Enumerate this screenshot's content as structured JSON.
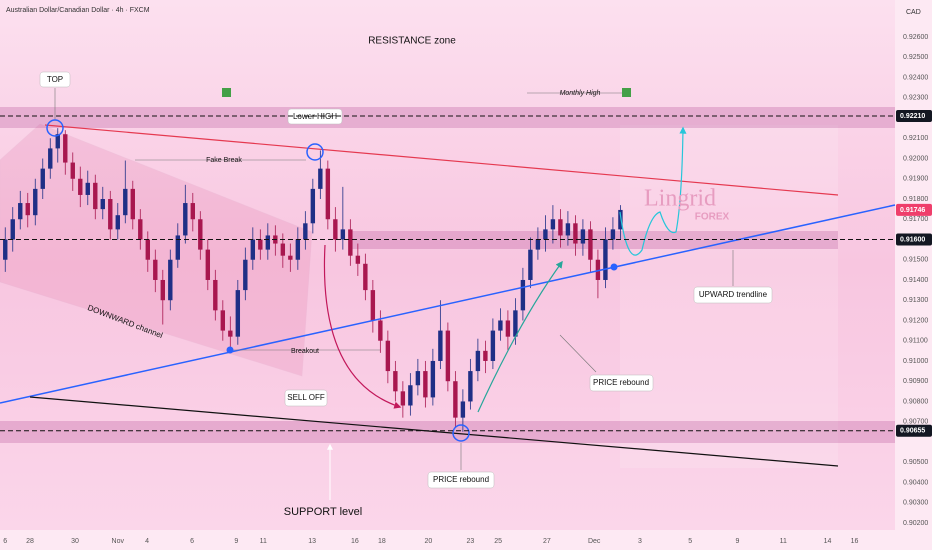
{
  "chart_data": {
    "type": "candlestick",
    "title": "Australian Dollar/Canadian Dollar · 4h · FXCM",
    "currency": "CAD",
    "annotations": [
      "RESISTANCE zone",
      "TOP",
      "Lower HIGH",
      "Fake Break",
      "Monthly High",
      "DOWNWARD channel",
      "Breakout",
      "SELL OFF",
      "PRICE rebound",
      "PRICE rebound",
      "UPWARD trendline",
      "SUPPORT level",
      "Lingrid",
      "FOREX"
    ],
    "up_color": "#1f2f86",
    "down_color": "#a8174f",
    "x": [
      1,
      2,
      3,
      4,
      5,
      6,
      7,
      8,
      9,
      10,
      11,
      12,
      13,
      14,
      15,
      16,
      17,
      18,
      19,
      20,
      21,
      22,
      23,
      24,
      25,
      26,
      27,
      28,
      29,
      30,
      31,
      32,
      33,
      34,
      35,
      36,
      37,
      38,
      39,
      40,
      41,
      42,
      43,
      44,
      45,
      46,
      47,
      48,
      49,
      50,
      51,
      52,
      53,
      54,
      55,
      56,
      57,
      58,
      59,
      60,
      61,
      62,
      63,
      64,
      65,
      66,
      67,
      68,
      69,
      70,
      71,
      72,
      73,
      74,
      75,
      76,
      77,
      78,
      79,
      80,
      81,
      82,
      83
    ],
    "open": [
      0.915,
      0.916,
      0.917,
      0.9178,
      0.9172,
      0.9185,
      0.9195,
      0.9205,
      0.9212,
      0.9198,
      0.919,
      0.9182,
      0.9188,
      0.9175,
      0.918,
      0.9165,
      0.9172,
      0.9185,
      0.917,
      0.916,
      0.915,
      0.914,
      0.913,
      0.915,
      0.9162,
      0.9178,
      0.917,
      0.9155,
      0.914,
      0.9125,
      0.9115,
      0.9112,
      0.9135,
      0.915,
      0.916,
      0.9155,
      0.9162,
      0.9158,
      0.9152,
      0.915,
      0.916,
      0.9168,
      0.9185,
      0.9195,
      0.917,
      0.916,
      0.9165,
      0.9152,
      0.9148,
      0.9135,
      0.912,
      0.911,
      0.9095,
      0.9085,
      0.9078,
      0.9088,
      0.9095,
      0.9082,
      0.91,
      0.9115,
      0.909,
      0.9072,
      0.908,
      0.9095,
      0.9105,
      0.91,
      0.9115,
      0.912,
      0.9112,
      0.9125,
      0.914,
      0.9155,
      0.916,
      0.9165,
      0.917,
      0.9162,
      0.9168,
      0.9158,
      0.9165,
      0.915,
      0.914,
      0.916,
      0.9165
    ],
    "high": [
      0.9166,
      0.9176,
      0.9184,
      0.9183,
      0.919,
      0.92,
      0.921,
      0.9215,
      0.9214,
      0.9203,
      0.9196,
      0.9194,
      0.9192,
      0.9186,
      0.9184,
      0.9178,
      0.9199,
      0.9189,
      0.9175,
      0.9164,
      0.9155,
      0.9145,
      0.9155,
      0.9168,
      0.9187,
      0.9183,
      0.9174,
      0.916,
      0.9145,
      0.913,
      0.9122,
      0.914,
      0.9156,
      0.9166,
      0.9165,
      0.9168,
      0.9167,
      0.9163,
      0.9158,
      0.9166,
      0.9174,
      0.919,
      0.9204,
      0.9199,
      0.9176,
      0.9186,
      0.917,
      0.9158,
      0.9153,
      0.914,
      0.9125,
      0.9115,
      0.91,
      0.909,
      0.9094,
      0.9101,
      0.91,
      0.9106,
      0.913,
      0.9119,
      0.9095,
      0.9086,
      0.9101,
      0.9111,
      0.911,
      0.9121,
      0.9126,
      0.9125,
      0.9131,
      0.9146,
      0.9161,
      0.9166,
      0.9172,
      0.9177,
      0.9175,
      0.9174,
      0.9172,
      0.917,
      0.9169,
      0.9155,
      0.9166,
      0.9171,
      0.9177
    ],
    "low": [
      0.9144,
      0.9154,
      0.9165,
      0.9166,
      0.9167,
      0.918,
      0.919,
      0.9198,
      0.9192,
      0.9184,
      0.9176,
      0.9177,
      0.917,
      0.917,
      0.916,
      0.916,
      0.9168,
      0.9165,
      0.9155,
      0.9144,
      0.9134,
      0.9118,
      0.9125,
      0.9146,
      0.9158,
      0.9164,
      0.915,
      0.9135,
      0.912,
      0.911,
      0.9104,
      0.9108,
      0.913,
      0.9145,
      0.915,
      0.915,
      0.9152,
      0.9146,
      0.9144,
      0.9145,
      0.9155,
      0.9163,
      0.918,
      0.9165,
      0.9154,
      0.9155,
      0.9147,
      0.9142,
      0.913,
      0.9114,
      0.9104,
      0.9089,
      0.908,
      0.9072,
      0.9073,
      0.9083,
      0.9077,
      0.9078,
      0.9096,
      0.9085,
      0.9067,
      0.9065,
      0.9076,
      0.909,
      0.9094,
      0.9096,
      0.911,
      0.9105,
      0.9108,
      0.912,
      0.9136,
      0.915,
      0.9154,
      0.9158,
      0.9156,
      0.9157,
      0.9152,
      0.9152,
      0.9144,
      0.9131,
      0.9136,
      0.9155,
      0.916
    ],
    "close": [
      0.916,
      0.917,
      0.9178,
      0.9172,
      0.9185,
      0.9195,
      0.9205,
      0.9212,
      0.9198,
      0.919,
      0.9182,
      0.9188,
      0.9175,
      0.918,
      0.9165,
      0.9172,
      0.9185,
      0.917,
      0.916,
      0.915,
      0.914,
      0.913,
      0.915,
      0.9162,
      0.9178,
      0.917,
      0.9155,
      0.914,
      0.9125,
      0.9115,
      0.9112,
      0.9135,
      0.915,
      0.916,
      0.9155,
      0.9162,
      0.9158,
      0.9152,
      0.915,
      0.916,
      0.9168,
      0.9185,
      0.9195,
      0.917,
      0.916,
      0.9165,
      0.9152,
      0.9148,
      0.9135,
      0.912,
      0.911,
      0.9095,
      0.9085,
      0.9078,
      0.9088,
      0.9095,
      0.9082,
      0.91,
      0.9115,
      0.909,
      0.9072,
      0.908,
      0.9095,
      0.9105,
      0.91,
      0.9115,
      0.912,
      0.9112,
      0.9125,
      0.914,
      0.9155,
      0.916,
      0.9165,
      0.917,
      0.9162,
      0.9168,
      0.9158,
      0.9165,
      0.915,
      0.914,
      0.916,
      0.9165,
      0.91746
    ],
    "xlim": [
      0.3,
      119.6
    ],
    "xticks": [
      {
        "value": 1.0,
        "label": "6"
      },
      {
        "value": 4.3,
        "label": "28"
      },
      {
        "value": 10.3,
        "label": "30"
      },
      {
        "value": 16.0,
        "label": "Nov"
      },
      {
        "value": 19.9,
        "label": "4"
      },
      {
        "value": 25.9,
        "label": "6"
      },
      {
        "value": 31.8,
        "label": "9"
      },
      {
        "value": 35.4,
        "label": "11"
      },
      {
        "value": 41.9,
        "label": "13"
      },
      {
        "value": 47.6,
        "label": "16"
      },
      {
        "value": 51.2,
        "label": "18"
      },
      {
        "value": 57.4,
        "label": "20"
      },
      {
        "value": 63.0,
        "label": "23"
      },
      {
        "value": 66.7,
        "label": "25"
      },
      {
        "value": 73.2,
        "label": "27"
      },
      {
        "value": 79.5,
        "label": "Dec"
      },
      {
        "value": 85.6,
        "label": "3"
      },
      {
        "value": 92.3,
        "label": "5"
      },
      {
        "value": 98.6,
        "label": "9"
      },
      {
        "value": 104.7,
        "label": "11"
      },
      {
        "value": 110.6,
        "label": "14"
      },
      {
        "value": 114.2,
        "label": "16"
      }
    ],
    "ylim": [
      0.90165,
      0.92783
    ],
    "yticks": [
      {
        "value": 0.926,
        "label": "0.92600"
      },
      {
        "value": 0.925,
        "label": "0.92500"
      },
      {
        "value": 0.924,
        "label": "0.92400"
      },
      {
        "value": 0.923,
        "label": "0.92300"
      },
      {
        "value": 0.921,
        "label": "0.92100"
      },
      {
        "value": 0.92,
        "label": "0.92000"
      },
      {
        "value": 0.919,
        "label": "0.91900"
      },
      {
        "value": 0.918,
        "label": "0.91800"
      },
      {
        "value": 0.917,
        "label": "0.91700"
      },
      {
        "value": 0.915,
        "label": "0.91500"
      },
      {
        "value": 0.914,
        "label": "0.91400"
      },
      {
        "value": 0.913,
        "label": "0.91300"
      },
      {
        "value": 0.912,
        "label": "0.91200"
      },
      {
        "value": 0.911,
        "label": "0.91100"
      },
      {
        "value": 0.91,
        "label": "0.91000"
      },
      {
        "value": 0.909,
        "label": "0.90900"
      },
      {
        "value": 0.908,
        "label": "0.90800"
      },
      {
        "value": 0.907,
        "label": "0.90700"
      },
      {
        "value": 0.905,
        "label": "0.90500"
      },
      {
        "value": 0.904,
        "label": "0.90400"
      },
      {
        "value": 0.903,
        "label": "0.90300"
      },
      {
        "value": 0.902,
        "label": "0.90200"
      }
    ],
    "price_levels": [
      {
        "value": 0.9221,
        "label": "0.92210"
      },
      {
        "value": 0.916,
        "label": "0.91600"
      },
      0.90655
    ],
    "level_color": "#131722",
    "last_price": 0.91746,
    "last_price_color": "#ef3e6b",
    "grid": false
  }
}
